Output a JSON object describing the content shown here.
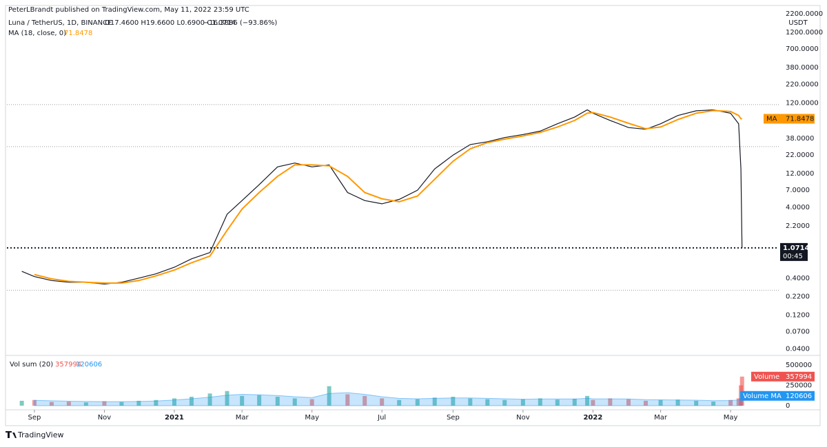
{
  "header": {
    "publisher": "PeterLBrandt published on TradingView.com, May 11, 2022 23:59 UTC",
    "symbol": "Luna / TetherUS, 1D, BINANCE",
    "ohlc": "O17.4600 H19.6600 L0.6900 C1.0714",
    "change": "−16.3886 (−93.86%)",
    "ma_legend": "MA (18, close, 0)",
    "vol_legend": "Vol sum (20)",
    "brand": "TradingView"
  },
  "chart_data": {
    "type": "line",
    "currency": "USDT",
    "log_scale": true,
    "x": [
      "2020-08-21",
      "2020-09-01",
      "2020-09-16",
      "2020-10-01",
      "2020-10-16",
      "2020-11-01",
      "2020-11-16",
      "2020-12-01",
      "2020-12-16",
      "2021-01-01",
      "2021-01-16",
      "2021-02-01",
      "2021-02-16",
      "2021-03-01",
      "2021-03-16",
      "2021-04-01",
      "2021-04-16",
      "2021-05-01",
      "2021-05-16",
      "2021-06-01",
      "2021-06-16",
      "2021-07-01",
      "2021-07-16",
      "2021-08-01",
      "2021-08-16",
      "2021-09-01",
      "2021-09-16",
      "2021-10-01",
      "2021-10-16",
      "2021-11-01",
      "2021-11-16",
      "2021-12-01",
      "2021-12-16",
      "2021-12-27",
      "2022-01-01",
      "2022-01-16",
      "2022-02-01",
      "2022-02-16",
      "2022-03-01",
      "2022-03-16",
      "2022-04-01",
      "2022-04-16",
      "2022-05-01",
      "2022-05-08",
      "2022-05-10",
      "2022-05-11"
    ],
    "xlim": [
      "2020-08-08",
      "2022-06-12"
    ],
    "xticks": [
      {
        "value": "2020-09-01",
        "label": "Sep"
      },
      {
        "value": "2020-11-01",
        "label": "Nov"
      },
      {
        "value": "2021-01-01",
        "label": "2021"
      },
      {
        "value": "2021-03-01",
        "label": "Mar"
      },
      {
        "value": "2021-05-01",
        "label": "May"
      },
      {
        "value": "2021-07-01",
        "label": "Jul"
      },
      {
        "value": "2021-09-01",
        "label": "Sep"
      },
      {
        "value": "2021-11-01",
        "label": "Nov"
      },
      {
        "value": "2022-01-01",
        "label": "2022"
      },
      {
        "value": "2022-03-01",
        "label": "Mar"
      },
      {
        "value": "2022-05-01",
        "label": "May"
      }
    ],
    "series": [
      {
        "name": "Luna / TetherUS",
        "color": "#131722",
        "values": [
          0.5,
          0.42,
          0.37,
          0.35,
          0.35,
          0.33,
          0.35,
          0.4,
          0.46,
          0.57,
          0.75,
          0.92,
          3.2,
          5.0,
          8.4,
          15,
          17,
          15,
          16,
          6.5,
          5.0,
          4.5,
          5.2,
          7,
          14,
          22,
          31,
          34,
          39,
          43,
          48,
          61,
          76,
          96,
          86,
          68,
          54,
          51,
          61,
          80,
          93,
          96,
          86,
          61,
          14,
          1.0714
        ],
        "last_label": "1.0714",
        "countdown": "00:45"
      },
      {
        "name": "MA",
        "color": "#ff9800",
        "values": [
          null,
          0.45,
          0.39,
          0.36,
          0.35,
          0.34,
          0.34,
          0.37,
          0.43,
          0.52,
          0.66,
          0.82,
          1.9,
          3.8,
          6.5,
          11,
          16,
          16,
          15.5,
          11,
          6.5,
          5.3,
          4.8,
          5.8,
          10,
          18,
          27,
          33,
          37,
          41,
          46,
          55,
          68,
          86,
          88,
          76,
          62,
          52,
          55,
          70,
          86,
          94,
          91,
          80,
          72,
          71.8478
        ]
      }
    ],
    "ylim": [
      0.033,
      2750
    ],
    "yticks": [
      {
        "value": 2200,
        "label": "2200.0000"
      },
      {
        "value": 1200,
        "label": "1200.0000"
      },
      {
        "value": 700,
        "label": "700.0000"
      },
      {
        "value": 380,
        "label": "380.0000"
      },
      {
        "value": 220,
        "label": "220.0000"
      },
      {
        "value": 120,
        "label": "120.0000"
      },
      {
        "value": 38,
        "label": "38.0000"
      },
      {
        "value": 22,
        "label": "22.0000"
      },
      {
        "value": 12,
        "label": "12.0000"
      },
      {
        "value": 7,
        "label": "7.0000"
      },
      {
        "value": 4,
        "label": "4.0000"
      },
      {
        "value": 2.2,
        "label": "2.2000"
      },
      {
        "value": 0.4,
        "label": "0.4000"
      },
      {
        "value": 0.22,
        "label": "0.2200"
      },
      {
        "value": 0.12,
        "label": "0.1200"
      },
      {
        "value": 0.07,
        "label": "0.0700"
      },
      {
        "value": 0.04,
        "label": "0.0400"
      }
    ],
    "horizontal_lines": [
      114,
      29,
      0.27
    ],
    "volume": {
      "name": "Volume",
      "color_up": "#26a69a",
      "color_down": "#ef5350",
      "values": [
        60000,
        70000,
        45000,
        50000,
        40000,
        55000,
        45000,
        60000,
        70000,
        90000,
        110000,
        150000,
        180000,
        120000,
        130000,
        110000,
        90000,
        80000,
        240000,
        140000,
        120000,
        90000,
        70000,
        80000,
        100000,
        110000,
        90000,
        80000,
        70000,
        80000,
        90000,
        75000,
        85000,
        120000,
        70000,
        90000,
        80000,
        60000,
        70000,
        75000,
        60000,
        50000,
        70000,
        90000,
        250000,
        357994
      ],
      "ma_name": "Volume MA",
      "ma_color": "#2196f3",
      "ma_values": [
        null,
        65000,
        60000,
        55000,
        52000,
        50000,
        50000,
        52000,
        58000,
        70000,
        85000,
        105000,
        130000,
        140000,
        135000,
        125000,
        110000,
        100000,
        150000,
        160000,
        140000,
        110000,
        90000,
        85000,
        90000,
        95000,
        95000,
        90000,
        85000,
        80000,
        82000,
        82000,
        83000,
        90000,
        85000,
        84000,
        82000,
        75000,
        72000,
        70000,
        68000,
        62000,
        64000,
        70000,
        95000,
        120606
      ],
      "ylim": [
        0,
        585000
      ],
      "yticks": [
        0,
        250000,
        500000
      ]
    }
  }
}
